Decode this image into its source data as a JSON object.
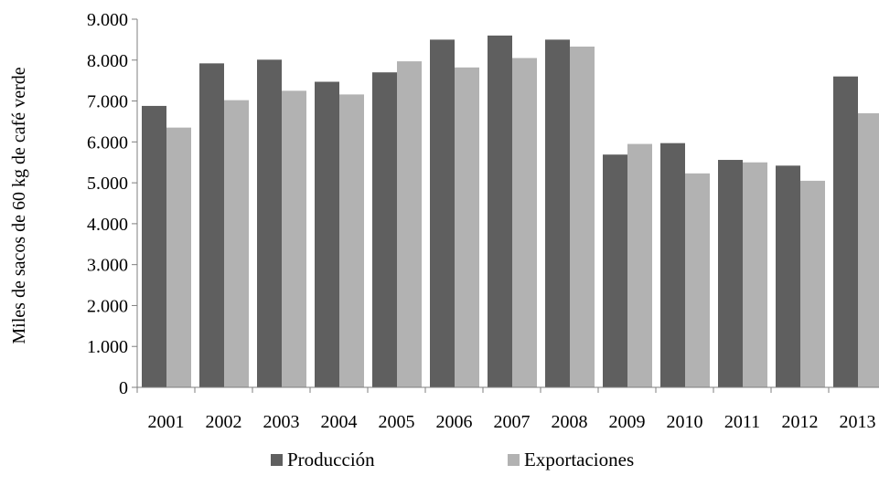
{
  "colors": {
    "produccion": "#5f5f5f",
    "exportaciones": "#b2b2b2",
    "axis": "#7f7f7f",
    "background": "#ffffff"
  },
  "chart_data": {
    "type": "bar",
    "title": "",
    "xlabel": "",
    "ylabel": "Miles de sacos de 60 kg de café verde",
    "ylim": [
      0,
      9000
    ],
    "yticks": [
      {
        "value": 0,
        "label": "0"
      },
      {
        "value": 1000,
        "label": "1.000"
      },
      {
        "value": 2000,
        "label": "2.000"
      },
      {
        "value": 3000,
        "label": "3.000"
      },
      {
        "value": 4000,
        "label": "4.000"
      },
      {
        "value": 5000,
        "label": "5.000"
      },
      {
        "value": 6000,
        "label": "6.000"
      },
      {
        "value": 7000,
        "label": "7.000"
      },
      {
        "value": 8000,
        "label": "8.000"
      },
      {
        "value": 9000,
        "label": "9.000"
      }
    ],
    "grid": false,
    "legend_position": "bottom",
    "categories": [
      "2001",
      "2002",
      "2003",
      "2004",
      "2005",
      "2006",
      "2007",
      "2008",
      "2009",
      "2010",
      "2011",
      "2012",
      "2013"
    ],
    "series": [
      {
        "name": "Producción",
        "color": "#5f5f5f",
        "values": [
          6880,
          7920,
          8010,
          7470,
          7700,
          8500,
          8600,
          8500,
          5690,
          5970,
          5560,
          5420,
          7600
        ]
      },
      {
        "name": "Exportaciones",
        "color": "#b2b2b2",
        "values": [
          6350,
          7020,
          7250,
          7160,
          7970,
          7820,
          8050,
          8330,
          5950,
          5230,
          5500,
          5050,
          6700
        ]
      }
    ]
  }
}
